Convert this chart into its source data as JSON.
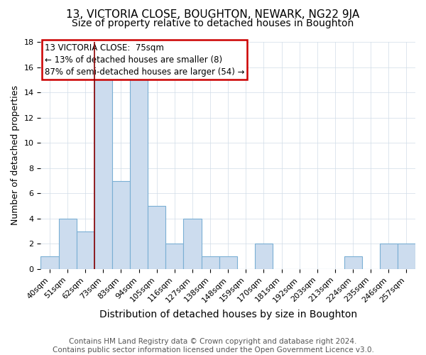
{
  "title": "13, VICTORIA CLOSE, BOUGHTON, NEWARK, NG22 9JA",
  "subtitle": "Size of property relative to detached houses in Boughton",
  "xlabel": "Distribution of detached houses by size in Boughton",
  "ylabel": "Number of detached properties",
  "bin_labels": [
    "40sqm",
    "51sqm",
    "62sqm",
    "73sqm",
    "83sqm",
    "94sqm",
    "105sqm",
    "116sqm",
    "127sqm",
    "138sqm",
    "148sqm",
    "159sqm",
    "170sqm",
    "181sqm",
    "192sqm",
    "203sqm",
    "213sqm",
    "224sqm",
    "235sqm",
    "246sqm",
    "257sqm"
  ],
  "bar_heights": [
    1,
    4,
    3,
    15,
    7,
    15,
    5,
    2,
    4,
    1,
    1,
    0,
    2,
    0,
    0,
    0,
    0,
    1,
    0,
    2,
    2
  ],
  "bar_color": "#ccdcee",
  "bar_edge_color": "#7aafd4",
  "property_line_color": "#8b0000",
  "property_line_bin_index": 3,
  "annotation_box_text": "13 VICTORIA CLOSE:  75sqm\n← 13% of detached houses are smaller (8)\n87% of semi-detached houses are larger (54) →",
  "annotation_box_edge_color": "#cc0000",
  "ylim": [
    0,
    18
  ],
  "yticks": [
    0,
    2,
    4,
    6,
    8,
    10,
    12,
    14,
    16,
    18
  ],
  "footer": "Contains HM Land Registry data © Crown copyright and database right 2024.\nContains public sector information licensed under the Open Government Licence v3.0.",
  "footer_fontsize": 7.5,
  "title_fontsize": 11,
  "subtitle_fontsize": 10,
  "xlabel_fontsize": 10,
  "ylabel_fontsize": 9,
  "tick_fontsize": 8,
  "annotation_fontsize": 8.5
}
